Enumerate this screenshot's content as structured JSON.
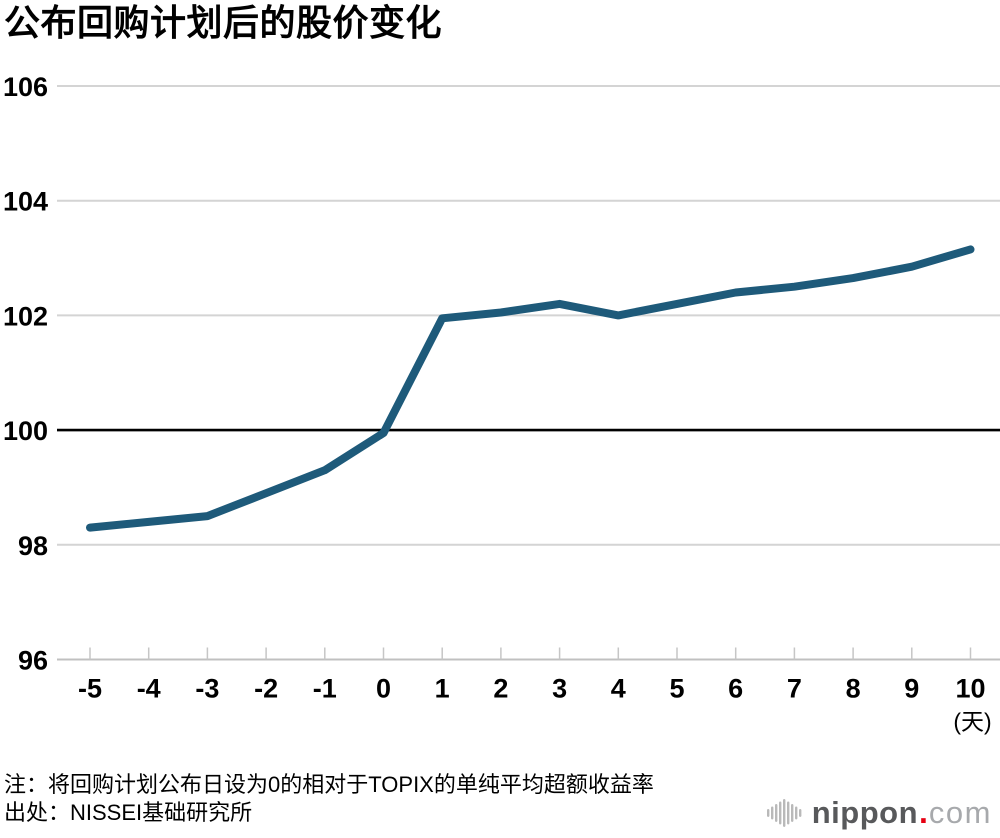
{
  "title": "公布回购计划后的股价变化",
  "chart_data": {
    "type": "line",
    "x": [
      -5,
      -4,
      -3,
      -2,
      -1,
      0,
      1,
      2,
      3,
      4,
      5,
      6,
      7,
      8,
      9,
      10
    ],
    "values": [
      98.3,
      98.4,
      98.5,
      98.9,
      99.3,
      99.95,
      101.95,
      102.05,
      102.2,
      102.0,
      102.2,
      102.4,
      102.5,
      102.65,
      102.85,
      103.15
    ],
    "title": "公布回购计划后的股价变化",
    "xlabel": "(天)",
    "ylabel": "",
    "ylim": [
      96,
      106
    ],
    "yticks": [
      96,
      98,
      100,
      102,
      104,
      106
    ],
    "baseline": 100,
    "grid": true,
    "legend": "none",
    "line_color": "#1e5a7a",
    "grid_color": "#d4d4d4",
    "axis_color": "#c0c0c0",
    "baseline_color": "#000000"
  },
  "note": "注：将回购计划公布日设为0的相对于TOPIX的单纯平均超额收益率",
  "source": "出处：NISSEI基础研究所",
  "logo": {
    "name": "nippon",
    "dot": ".",
    "tld": "com",
    "icon": "soundwave-icon",
    "dot_color": "#e60012"
  }
}
